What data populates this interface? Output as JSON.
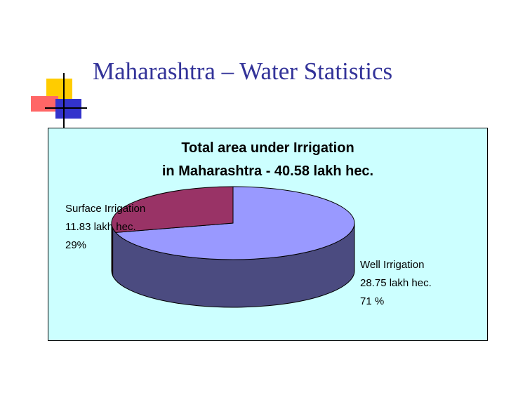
{
  "slide": {
    "title": "Maharashtra – Water Statistics"
  },
  "colors": {
    "title": "#333399",
    "chart_background": "#ccffff",
    "well_top": "#9999ff",
    "well_side": "#4b4b80",
    "surface_top": "#993366",
    "surface_side": "#5c1f3d",
    "deco_yellow": "#ffcc00",
    "deco_red": "#ff6666",
    "deco_blue": "#3333cc"
  },
  "chart_data": {
    "type": "pie",
    "title_lines": [
      "Total area under Irrigation",
      "in Maharashtra - 40.58 lakh hec."
    ],
    "unit": "lakh hec.",
    "total": 40.58,
    "slices": [
      {
        "name": "Well Irrigation",
        "value": 28.75,
        "percent": 71,
        "label_lines": [
          "Well Irrigation",
          "28.75 lakh hec.",
          "71 %"
        ]
      },
      {
        "name": "Surface Irrigation",
        "value": 11.83,
        "percent": 29,
        "label_lines": [
          "Surface Irrigation",
          "11.83 lakh hec.",
          "29%"
        ]
      }
    ],
    "legend": "none",
    "style": "3d"
  }
}
